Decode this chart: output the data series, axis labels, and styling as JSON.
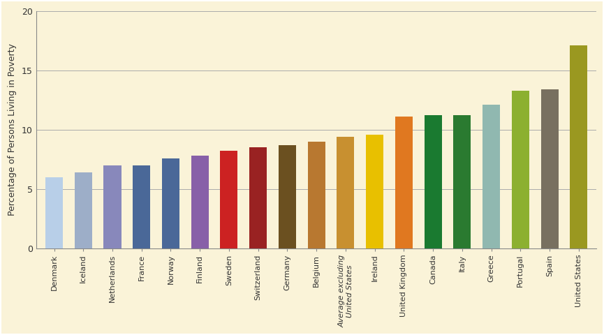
{
  "categories": [
    "Denmark",
    "Iceland",
    "Netherlands",
    "France",
    "Norway",
    "Finland",
    "Sweden",
    "Switzerland",
    "Germany",
    "Belgium",
    "Average excluding\nUnited States",
    "Ireland",
    "United Kingdom",
    "Canada",
    "Italy",
    "Greece",
    "Portugal",
    "Spain",
    "United States"
  ],
  "values": [
    6.0,
    6.4,
    7.0,
    7.0,
    7.6,
    7.8,
    8.2,
    8.5,
    8.7,
    9.0,
    9.4,
    9.6,
    11.1,
    11.2,
    11.2,
    12.1,
    13.3,
    13.4,
    17.1
  ],
  "colors": [
    "#b8cfe8",
    "#9daec8",
    "#8888bb",
    "#4a6898",
    "#4a6898",
    "#8860a8",
    "#cc2222",
    "#992222",
    "#6b5020",
    "#b87830",
    "#c89030",
    "#e8c000",
    "#e07820",
    "#1a7a30",
    "#2a7a30",
    "#90b8b0",
    "#8cb030",
    "#787060",
    "#9a9820"
  ],
  "avg_label_italic": true,
  "ylabel": "Percentage of Persons Living in Poverty",
  "ylim": [
    0,
    20
  ],
  "yticks": [
    0,
    5,
    10,
    15,
    20
  ],
  "bg_color": "#faf3d8",
  "plot_bg_color": "#faf3d8",
  "grid_color": "#aaaaaa",
  "bar_width": 0.6,
  "outer_border_color": "#888888",
  "figsize": [
    8.65,
    4.8
  ],
  "dpi": 100
}
